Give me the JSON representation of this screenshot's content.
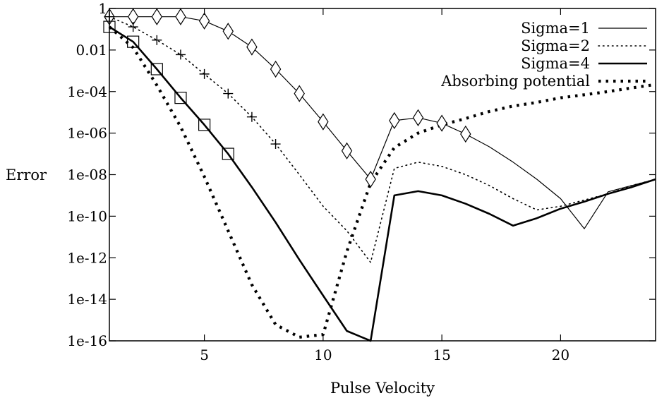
{
  "chart_data": {
    "type": "line",
    "title": "",
    "xlabel": "Pulse Velocity",
    "ylabel": "Error",
    "xlim": [
      1,
      24
    ],
    "ylim_log10": [
      -16,
      0
    ],
    "y_scale": "log",
    "x_ticks": [
      5,
      10,
      15,
      20
    ],
    "x_tick_labels": [
      "5",
      "10",
      "15",
      "20"
    ],
    "y_ticks_log10": [
      0,
      -2,
      -4,
      -6,
      -8,
      -10,
      -12,
      -14,
      -16
    ],
    "y_tick_labels": [
      "1",
      "0.01",
      "1e-04",
      "1e-06",
      "1e-08",
      "1e-10",
      "1e-12",
      "1e-14",
      "1e-16"
    ],
    "grid": false,
    "legend_position": "top-right",
    "series": [
      {
        "name": "Sigma=1",
        "style": "solid-thin",
        "x": [
          1,
          2,
          3,
          4,
          5,
          6,
          7,
          8,
          9,
          10,
          11,
          12,
          13,
          14,
          15,
          16,
          17,
          18,
          19,
          20,
          21,
          22,
          23,
          24
        ],
        "y": [
          0.4,
          0.4,
          0.4,
          0.4,
          0.25,
          0.08,
          0.014,
          0.0012,
          8e-05,
          3.5e-06,
          1.4e-07,
          6e-09,
          4e-06,
          5.5e-06,
          3e-06,
          9e-07,
          2.2e-07,
          4e-08,
          6e-09,
          7e-10,
          2.5e-11,
          1.5e-09,
          3e-09,
          6e-09
        ]
      },
      {
        "name": "Sigma=2",
        "style": "dotted-thin",
        "x": [
          1,
          2,
          3,
          4,
          5,
          6,
          7,
          8,
          9,
          10,
          11,
          12,
          13,
          14,
          15,
          16,
          17,
          18,
          19,
          20,
          21,
          22,
          23,
          24
        ],
        "y": [
          0.4,
          0.13,
          0.03,
          0.006,
          0.0007,
          8e-05,
          6e-06,
          3e-07,
          1e-08,
          3e-10,
          2e-11,
          6e-13,
          2e-08,
          4e-08,
          2.5e-08,
          1e-08,
          3e-09,
          7e-10,
          2e-10,
          3e-10,
          6e-10,
          1.2e-09,
          3e-09,
          6e-09
        ]
      },
      {
        "name": "Sigma=4",
        "style": "solid-thick",
        "x": [
          1,
          2,
          3,
          4,
          5,
          6,
          7,
          8,
          9,
          10,
          11,
          12,
          13,
          14,
          15,
          16,
          17,
          18,
          19,
          20,
          21,
          22,
          23,
          24
        ],
        "y": [
          0.13,
          0.025,
          0.0012,
          5e-05,
          2.5e-06,
          1e-07,
          2.5e-09,
          5e-11,
          8e-13,
          1.5e-14,
          3e-16,
          5e-17,
          1e-09,
          1.6e-09,
          1e-09,
          4e-10,
          1.3e-10,
          3.5e-11,
          8e-11,
          2.3e-10,
          5e-10,
          1.2e-09,
          2.5e-09,
          6e-09
        ]
      },
      {
        "name": "Absorbing potential",
        "style": "dotted-thick",
        "x": [
          1,
          2,
          3,
          4,
          5,
          6,
          7,
          8,
          9,
          10,
          11,
          12,
          13,
          14,
          15,
          16,
          17,
          18,
          19,
          20,
          21,
          22,
          23,
          24
        ],
        "y": [
          0.13,
          0.013,
          0.0002,
          2e-06,
          8e-09,
          2e-11,
          5e-14,
          6e-16,
          1.5e-16,
          2e-16,
          2e-12,
          4e-09,
          2e-07,
          1e-06,
          2.5e-06,
          5e-06,
          1.1e-05,
          2e-05,
          3e-05,
          5e-05,
          7e-05,
          0.0001,
          0.00015,
          0.00022
        ]
      }
    ],
    "markers": [
      {
        "series": "Sigma=1",
        "shape": "diamond",
        "x": [
          1,
          2,
          3,
          4,
          5,
          6,
          7,
          8,
          9,
          10,
          11,
          12,
          13,
          14,
          15,
          16
        ],
        "y": [
          0.4,
          0.4,
          0.4,
          0.4,
          0.25,
          0.08,
          0.014,
          0.0012,
          8e-05,
          3.5e-06,
          1.4e-07,
          6e-09,
          4e-06,
          5.5e-06,
          3e-06,
          9e-07
        ]
      },
      {
        "series": "Sigma=2",
        "shape": "plus",
        "x": [
          1,
          2,
          3,
          4,
          5,
          6,
          7,
          8
        ],
        "y": [
          0.4,
          0.13,
          0.03,
          0.006,
          0.0007,
          8e-05,
          6e-06,
          3e-07
        ]
      },
      {
        "series": "Sigma=4",
        "shape": "square",
        "x": [
          1,
          2,
          3,
          4,
          5,
          6
        ],
        "y": [
          0.13,
          0.025,
          0.0012,
          5e-05,
          2.5e-06,
          1e-07
        ]
      }
    ]
  }
}
